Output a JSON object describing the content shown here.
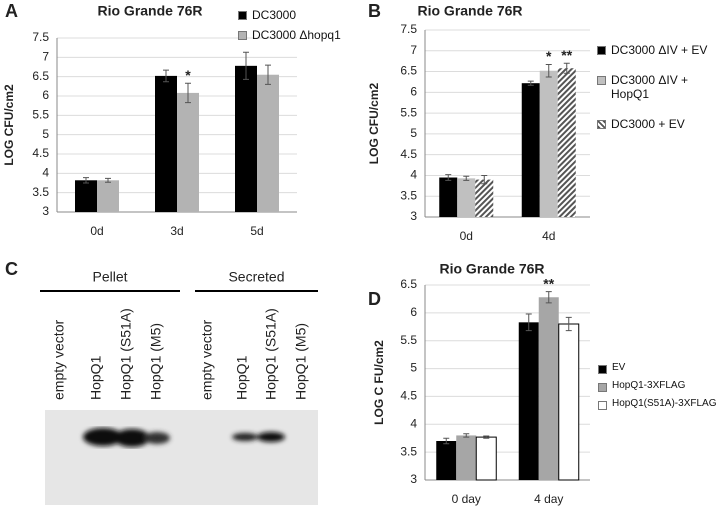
{
  "chart_data": [
    {
      "type": "bar",
      "panel_label": "A",
      "title": "Rio Grande 76R",
      "y_label": "LOG CFU/cm2",
      "categories": [
        "0d",
        "3d",
        "5d"
      ],
      "series": [
        {
          "name": "DC3000",
          "color": "#000000",
          "values": [
            3.82,
            6.52,
            6.78
          ],
          "errors": [
            0.07,
            0.15,
            0.35
          ],
          "labels": [
            null,
            null,
            null
          ]
        },
        {
          "name": "DC3000 Δhopq1",
          "color": "#b3b3b3",
          "values": [
            3.82,
            6.08,
            6.55
          ],
          "errors": [
            0.05,
            0.25,
            0.25
          ],
          "labels": [
            null,
            "*",
            null
          ]
        }
      ],
      "ylim": [
        3,
        7.5
      ],
      "yticks": [
        3,
        3.5,
        4,
        4.5,
        5,
        5.5,
        6,
        6.5,
        7,
        7.5
      ],
      "grid": true,
      "legend": "top-right"
    },
    {
      "type": "bar",
      "panel_label": "B",
      "title": "Rio Grande 76R",
      "y_label": "LOG CFU/cm2",
      "categories": [
        "0d",
        "4d"
      ],
      "series": [
        {
          "name": "DC3000 ΔIV + EV",
          "color": "#000000",
          "values": [
            3.95,
            6.22
          ],
          "errors": [
            0.07,
            0.05
          ],
          "labels": [
            null,
            null
          ]
        },
        {
          "name": "DC3000 ΔIV + HopQ1",
          "color": "#c0c0c0",
          "values": [
            3.93,
            6.52
          ],
          "errors": [
            0.05,
            0.15
          ],
          "labels": [
            null,
            "*"
          ]
        },
        {
          "name": "DC3000 + EV",
          "color": "#555555",
          "pattern": "hatch",
          "values": [
            3.9,
            6.58
          ],
          "errors": [
            0.1,
            0.12
          ],
          "labels": [
            null,
            "**"
          ]
        }
      ],
      "ylim": [
        3,
        7.5
      ],
      "yticks": [
        3,
        3.5,
        4,
        4.5,
        5,
        5.5,
        6,
        6.5,
        7,
        7.5
      ],
      "grid": true,
      "legend": "right"
    },
    {
      "type": "bar",
      "panel_label": "D",
      "title": "Rio Grande 76R",
      "y_label": "LOG C FU/cm2",
      "categories": [
        "0 day",
        "4 day"
      ],
      "series": [
        {
          "name": "EV",
          "color": "#000000",
          "values": [
            3.7,
            5.83
          ],
          "errors": [
            0.05,
            0.15
          ],
          "labels": [
            null,
            null
          ]
        },
        {
          "name": "HopQ1-3XFLAG",
          "color": "#a6a6a6",
          "values": [
            3.8,
            6.28
          ],
          "errors": [
            0.03,
            0.1
          ],
          "labels": [
            null,
            "**"
          ]
        },
        {
          "name": "HopQ1(S51A)-3XFLAG",
          "color": "#ffffff",
          "values": [
            3.77,
            5.8
          ],
          "errors": [
            0.02,
            0.12
          ],
          "labels": [
            null,
            null
          ]
        }
      ],
      "ylim": [
        3,
        6.5
      ],
      "yticks": [
        3,
        3.5,
        4,
        4.5,
        5,
        5.5,
        6,
        6.5
      ],
      "grid": true,
      "legend": "right"
    }
  ],
  "blot": {
    "panel_label": "C",
    "groups": [
      {
        "label": "Pellet",
        "lanes": [
          "empty vector",
          "HopQ1",
          "HopQ1 (S51A)",
          "HopQ1 (M5)"
        ]
      },
      {
        "label": "Secreted",
        "lanes": [
          "empty vector",
          "HopQ1",
          "HopQ1 (S51A)",
          "HopQ1 (M5)"
        ]
      }
    ]
  }
}
